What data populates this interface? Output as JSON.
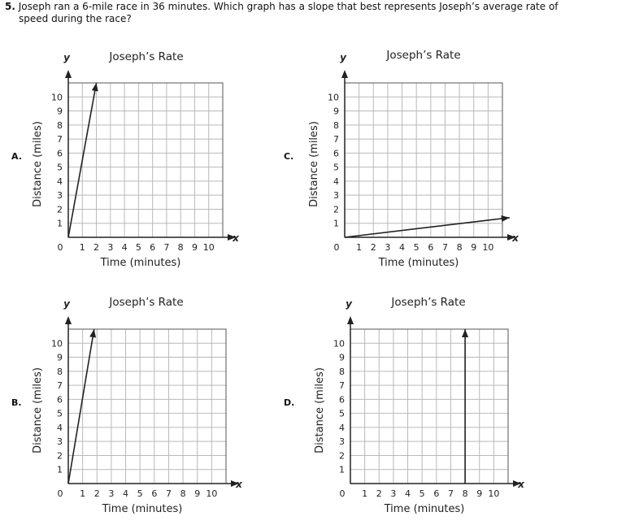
{
  "question": {
    "number": "5.",
    "text_line1": "Joseph ran a 6-mile race in 36 minutes. Which graph has a slope that best represents Joseph’s average rate of",
    "text_line2": "speed during the race?"
  },
  "chart_data": [
    {
      "type": "line",
      "option": "A.",
      "title": "Joseph’s Rate",
      "xlabel": "Time (minutes)",
      "ylabel": "Distance (miles)",
      "x_var": "x",
      "y_var": "y",
      "xlim": [
        0,
        10
      ],
      "ylim": [
        0,
        10
      ],
      "origin_label": "0",
      "x_ticks": [
        "1",
        "2",
        "3",
        "4",
        "5",
        "6",
        "7",
        "8",
        "9",
        "10"
      ],
      "y_ticks": [
        "1",
        "2",
        "3",
        "4",
        "5",
        "6",
        "7",
        "8",
        "9",
        "10"
      ],
      "grid": true,
      "series": [
        {
          "x": [
            0,
            2
          ],
          "y": [
            0,
            11
          ]
        }
      ]
    },
    {
      "type": "line",
      "option": "C.",
      "title": "Joseph’s Rate",
      "xlabel": "Time (minutes)",
      "ylabel": "Distance (miles)",
      "x_var": "x",
      "y_var": "y",
      "xlim": [
        0,
        10
      ],
      "ylim": [
        0,
        10
      ],
      "origin_label": "0",
      "x_ticks": [
        "1",
        "2",
        "3",
        "4",
        "5",
        "6",
        "7",
        "8",
        "9",
        "10"
      ],
      "y_ticks": [
        "1",
        "2",
        "3",
        "4",
        "5",
        "6",
        "7",
        "8",
        "9",
        "10"
      ],
      "grid": true,
      "series": [
        {
          "x": [
            0,
            11.5
          ],
          "y": [
            0,
            1.4
          ]
        }
      ]
    },
    {
      "type": "line",
      "option": "B.",
      "title": "Joseph’s Rate",
      "xlabel": "Time (minutes)",
      "ylabel": "Distance (miles)",
      "x_var": "x",
      "y_var": "y",
      "xlim": [
        0,
        10
      ],
      "ylim": [
        0,
        10
      ],
      "origin_label": "0",
      "x_ticks": [
        "1",
        "2",
        "3",
        "4",
        "5",
        "6",
        "7",
        "8",
        "9",
        "10"
      ],
      "y_ticks": [
        "1",
        "2",
        "3",
        "4",
        "5",
        "6",
        "7",
        "8",
        "9",
        "10"
      ],
      "grid": true,
      "series": [
        {
          "x": [
            0,
            1.8
          ],
          "y": [
            0,
            11
          ]
        }
      ]
    },
    {
      "type": "line",
      "option": "D.",
      "title": "Joseph’s Rate",
      "xlabel": "Time (minutes)",
      "ylabel": "Distance (miles)",
      "x_var": "x",
      "y_var": "y",
      "xlim": [
        0,
        10
      ],
      "ylim": [
        0,
        10
      ],
      "origin_label": "0",
      "x_ticks": [
        "1",
        "2",
        "3",
        "4",
        "5",
        "6",
        "7",
        "8",
        "9",
        "10"
      ],
      "y_ticks": [
        "1",
        "2",
        "3",
        "4",
        "5",
        "6",
        "7",
        "8",
        "9",
        "10"
      ],
      "grid": true,
      "series": [
        {
          "x": [
            8,
            8
          ],
          "y": [
            0,
            11
          ]
        }
      ]
    }
  ]
}
